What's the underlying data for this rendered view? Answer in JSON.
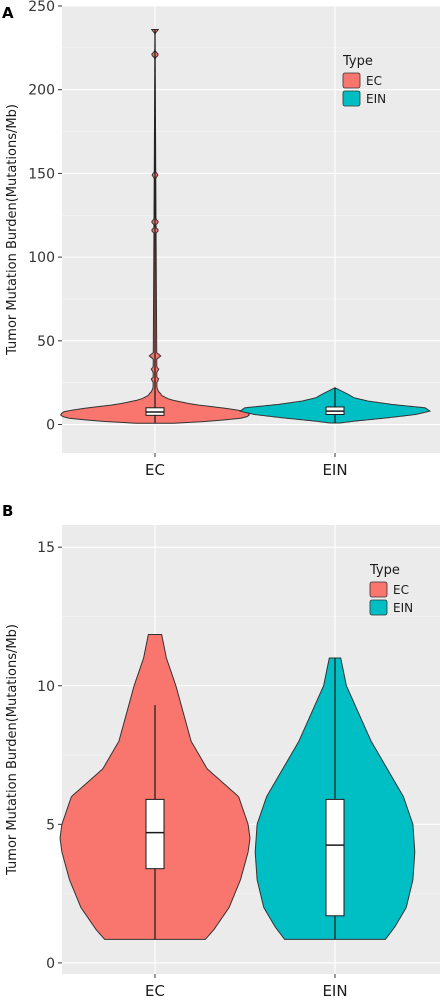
{
  "chart_data": [
    {
      "panel": "A",
      "type": "violin",
      "xlabel": "",
      "ylabel": "Tumor Mutation Burden(Mutations/Mb)",
      "ylim": [
        -17,
        250
      ],
      "yticks": [
        0,
        50,
        100,
        150,
        200,
        250
      ],
      "categories": [
        "EC",
        "EIN"
      ],
      "legend": {
        "title": "Type",
        "position": "top-right",
        "items": [
          "EC",
          "EIN"
        ]
      },
      "series": [
        {
          "name": "EC",
          "color": "#f8766d",
          "range": [
            0.8,
            236
          ],
          "box": {
            "q1": 5.5,
            "median": 7.5,
            "q3": 10
          },
          "whisker": [
            0.8,
            236
          ],
          "density": [
            [
              0.8,
              0.2
            ],
            [
              2,
              0.6
            ],
            [
              4,
              0.95
            ],
            [
              6,
              1.0
            ],
            [
              8,
              0.95
            ],
            [
              10,
              0.7
            ],
            [
              12,
              0.4
            ],
            [
              15,
              0.15
            ],
            [
              18,
              0.05
            ],
            [
              22,
              0.02
            ],
            [
              236,
              0.0
            ]
          ],
          "bulges": [
            [
              15.5,
              0.06
            ],
            [
              18.5,
              0.06
            ],
            [
              27,
              0.04
            ],
            [
              33,
              0.04
            ],
            [
              41,
              0.06
            ],
            [
              116,
              0.035
            ],
            [
              121,
              0.035
            ],
            [
              149,
              0.03
            ],
            [
              221,
              0.035
            ],
            [
              236,
              0.035
            ]
          ],
          "bulge_sigma": 1.5
        },
        {
          "name": "EIN",
          "color": "#00bfc4",
          "range": [
            0.9,
            22
          ],
          "box": {
            "q1": 6,
            "median": 8,
            "q3": 10.5
          },
          "whisker": [
            0.9,
            22
          ],
          "density": [
            [
              0.9,
              0.05
            ],
            [
              2,
              0.2
            ],
            [
              4,
              0.55
            ],
            [
              6,
              0.85
            ],
            [
              8,
              1.0
            ],
            [
              10,
              0.95
            ],
            [
              12,
              0.6
            ],
            [
              14,
              0.35
            ],
            [
              16,
              0.2
            ],
            [
              18,
              0.14
            ],
            [
              20,
              0.07
            ],
            [
              22,
              0.0
            ]
          ]
        }
      ]
    },
    {
      "panel": "B",
      "type": "violin",
      "xlabel": "",
      "ylabel": "Tumor Mutation Burden(Mutations/Mb)",
      "ylim": [
        -0.4,
        15.8
      ],
      "yticks": [
        0,
        5,
        10,
        15
      ],
      "categories": [
        "EC",
        "EIN"
      ],
      "legend": {
        "title": "Type",
        "position": "top-right",
        "items": [
          "EC",
          "EIN"
        ]
      },
      "series": [
        {
          "name": "EC",
          "color": "#f8766d",
          "range": [
            0.85,
            11.85
          ],
          "box": {
            "q1": 3.4,
            "median": 4.7,
            "q3": 5.9
          },
          "whisker": [
            0.85,
            9.3
          ],
          "density": [
            [
              0.85,
              0.53
            ],
            [
              1.2,
              0.62
            ],
            [
              2,
              0.78
            ],
            [
              3,
              0.9
            ],
            [
              4,
              0.98
            ],
            [
              4.5,
              1.0
            ],
            [
              5,
              0.98
            ],
            [
              6,
              0.88
            ],
            [
              7,
              0.55
            ],
            [
              8,
              0.38
            ],
            [
              9,
              0.3
            ],
            [
              10,
              0.22
            ],
            [
              11,
              0.12
            ],
            [
              11.85,
              0.07
            ]
          ]
        },
        {
          "name": "EIN",
          "color": "#00bfc4",
          "range": [
            0.85,
            11.0
          ],
          "box": {
            "q1": 1.7,
            "median": 4.25,
            "q3": 5.9
          },
          "whisker": [
            0.85,
            11.0
          ],
          "density": [
            [
              0.85,
              0.53
            ],
            [
              1.3,
              0.63
            ],
            [
              2,
              0.75
            ],
            [
              3,
              0.82
            ],
            [
              4,
              0.84
            ],
            [
              5,
              0.82
            ],
            [
              6,
              0.72
            ],
            [
              7,
              0.55
            ],
            [
              8,
              0.38
            ],
            [
              9,
              0.25
            ],
            [
              10,
              0.12
            ],
            [
              11,
              0.06
            ]
          ]
        }
      ]
    }
  ]
}
